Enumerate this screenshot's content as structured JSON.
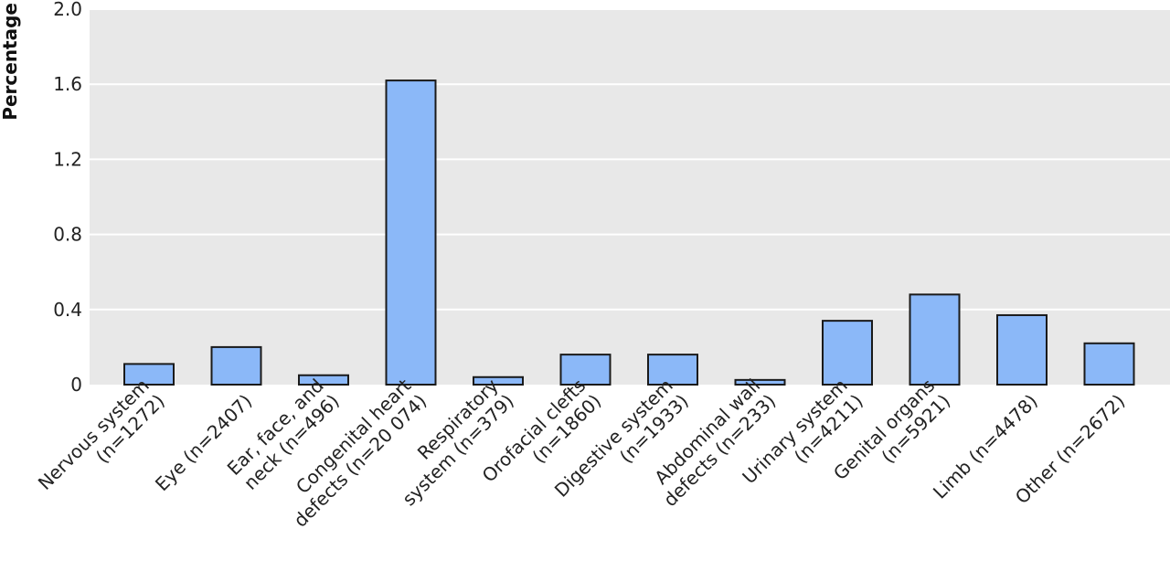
{
  "chart_data": {
    "type": "bar",
    "title": "",
    "xlabel": "",
    "ylabel": "Percentage",
    "ylim": [
      0,
      2.0
    ],
    "yticks": [
      "0",
      "0.4",
      "0.8",
      "1.2",
      "1.6",
      "2.0"
    ],
    "grid": true,
    "categories": [
      [
        "Nervous system",
        "(n=1272)"
      ],
      [
        "Eye (n=2407)"
      ],
      [
        "Ear, face, and",
        "neck (n=496)"
      ],
      [
        "Congenital heart",
        "defects (n=20 074)"
      ],
      [
        "Respiratory",
        "system (n=379)"
      ],
      [
        "Orofacial clefts",
        "(n=1860)"
      ],
      [
        "Digestive system",
        "(n=1933)"
      ],
      [
        "Abdominal wall",
        "defects (n=233)"
      ],
      [
        "Urinary system",
        "(n=4211)"
      ],
      [
        "Genital organs",
        "(n=5921)"
      ],
      [
        "Limb (n=4478)"
      ],
      [
        "Other (n=2672)"
      ]
    ],
    "values": [
      0.11,
      0.2,
      0.05,
      1.62,
      0.04,
      0.16,
      0.16,
      0.025,
      0.34,
      0.48,
      0.37,
      0.22
    ],
    "colors": {
      "bar": "#8bb8f8",
      "bar_stroke": "#1a1a1a",
      "plot_bg": "#e8e8e8",
      "grid": "#ffffff"
    }
  }
}
